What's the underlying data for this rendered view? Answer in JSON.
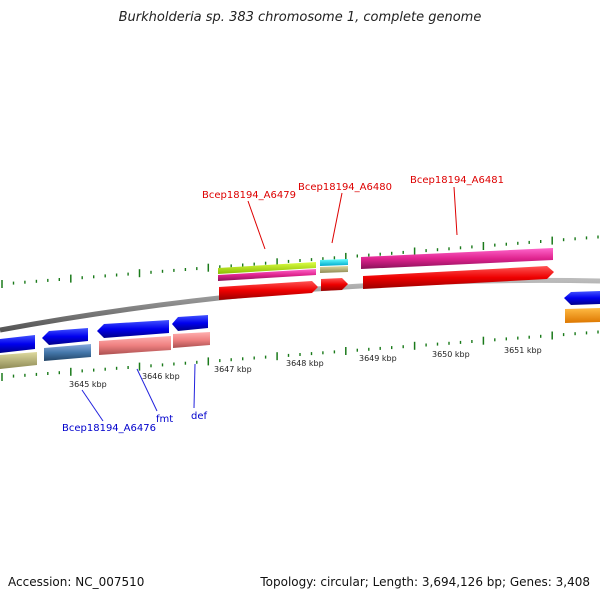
{
  "title": "Burkholderia sp. 383 chromosome 1, complete genome",
  "footer": {
    "accession": "Accession: NC_007510",
    "summary": "Topology: circular; Length: 3,694,126 bp; Genes: 3,408"
  },
  "ticks": [
    "3645 kbp",
    "3646 kbp",
    "3647 kbp",
    "3648 kbp",
    "3649 kbp",
    "3650 kbp",
    "3651 kbp"
  ],
  "top_labels": [
    "Bcep18194_A6479",
    "Bcep18194_A6480",
    "Bcep18194_A6481"
  ],
  "bottom_labels": [
    "Bcep18194_A6476",
    "fmt",
    "def"
  ],
  "colors": {
    "top_label": "#dd0000",
    "bottom_label": "#0000cc",
    "leader_top": "#dd0000",
    "leader_bottom": "#2222dd",
    "tick": "#1a7a1a",
    "backbone": "#8a8a8a"
  }
}
